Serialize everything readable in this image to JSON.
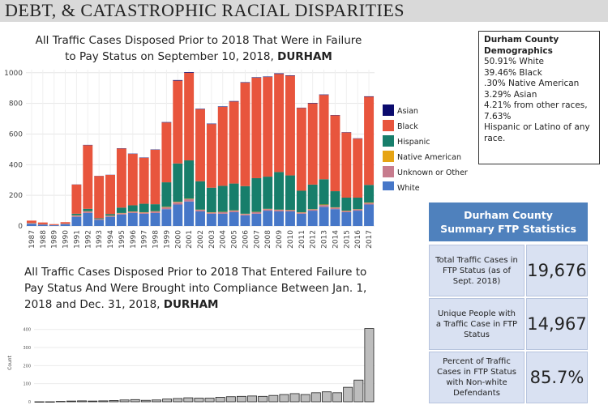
{
  "header": {
    "text": "DEBT, & CATASTROPHIC RACIAL DISPARITIES"
  },
  "chart1": {
    "title_line1": "All Traffic Cases Disposed Prior to 2018 That Were in Failure",
    "title_line2": "to Pay Status on September 10, 2018,",
    "title_bold": "DURHAM"
  },
  "chart2": {
    "title_line1": "All Traffic Cases Disposed Prior to 2018 That Entered Failure to",
    "title_line2": "Pay Status And Were Brought into Compliance Between Jan. 1,",
    "title_line3": "2018 and Dec. 31, 2018,",
    "title_bold": "DURHAM"
  },
  "demographics": {
    "title_line1": "Durham County",
    "title_line2": "Demographics",
    "lines": [
      "50.91% White",
      "39.46% Black",
      ".30% Native American",
      "3.29% Asian",
      "4.21% from other races,",
      "7.63%",
      "Hispanic or Latino of any",
      "race."
    ]
  },
  "summary": {
    "title_line1": "Durham County",
    "title_line2": "Summary FTP Statistics",
    "rows": [
      {
        "label": "Total Traffic Cases in FTP Status (as of Sept. 2018)",
        "value": "19,676"
      },
      {
        "label": "Unique People with a Traffic Case in FTP Status",
        "value": "14,967"
      },
      {
        "label": "Percent of Traffic Cases in FTP Status with Non-white Defendants",
        "value": "85.7%"
      }
    ]
  },
  "colors": {
    "Asian": "#0b0b6e",
    "Black": "#e8553d",
    "Hispanic": "#177e6b",
    "Native American": "#e6a414",
    "Unknown or Other": "#c77c8e",
    "White": "#4677c8"
  },
  "chart_data": [
    {
      "type": "bar",
      "stacked": true,
      "categories": [
        "1987",
        "1988",
        "1989",
        "1990",
        "1991",
        "1992",
        "1993",
        "1994",
        "1995",
        "1996",
        "1997",
        "1998",
        "1999",
        "2000",
        "2001",
        "2002",
        "2003",
        "2004",
        "2005",
        "2006",
        "2007",
        "2008",
        "2009",
        "2010",
        "2011",
        "2012",
        "2013",
        "2014",
        "2015",
        "2016",
        "2017"
      ],
      "ylim": [
        0,
        1020
      ],
      "yticks": [
        0,
        200,
        400,
        600,
        800,
        1000
      ],
      "legend_position": "right",
      "series": [
        {
          "name": "White",
          "values": [
            15,
            8,
            5,
            12,
            60,
            85,
            40,
            60,
            75,
            85,
            80,
            85,
            110,
            140,
            160,
            95,
            80,
            80,
            90,
            70,
            80,
            100,
            95,
            95,
            80,
            100,
            125,
            110,
            90,
            100,
            140
          ]
        },
        {
          "name": "Unknown or Other",
          "values": [
            3,
            2,
            1,
            2,
            8,
            10,
            5,
            6,
            8,
            8,
            8,
            10,
            12,
            15,
            15,
            10,
            8,
            10,
            10,
            8,
            10,
            10,
            10,
            8,
            8,
            8,
            12,
            10,
            8,
            8,
            10
          ]
        },
        {
          "name": "Native American",
          "values": [
            1,
            0,
            0,
            0,
            2,
            2,
            1,
            2,
            2,
            2,
            2,
            2,
            3,
            3,
            3,
            2,
            2,
            2,
            2,
            2,
            2,
            2,
            2,
            2,
            2,
            2,
            3,
            2,
            2,
            2,
            3
          ]
        },
        {
          "name": "Hispanic",
          "values": [
            1,
            1,
            0,
            1,
            10,
            15,
            5,
            10,
            35,
            40,
            55,
            45,
            160,
            250,
            250,
            185,
            160,
            170,
            175,
            180,
            220,
            210,
            245,
            225,
            140,
            160,
            165,
            105,
            85,
            75,
            115
          ]
        },
        {
          "name": "Black",
          "values": [
            15,
            12,
            6,
            10,
            190,
            415,
            275,
            255,
            385,
            335,
            300,
            355,
            390,
            540,
            572,
            470,
            415,
            515,
            535,
            675,
            655,
            650,
            640,
            650,
            540,
            530,
            550,
            495,
            425,
            385,
            575
          ]
        },
        {
          "name": "Asian",
          "values": [
            0,
            0,
            0,
            0,
            1,
            2,
            1,
            1,
            2,
            2,
            2,
            2,
            3,
            4,
            4,
            3,
            3,
            3,
            3,
            3,
            3,
            3,
            4,
            3,
            2,
            3,
            3,
            2,
            2,
            2,
            3
          ]
        }
      ]
    },
    {
      "type": "bar",
      "ylabel": "Count",
      "ylim": [
        0,
        430
      ],
      "yticks": [
        0,
        100,
        200,
        300,
        400
      ],
      "values": [
        0,
        0,
        2,
        4,
        5,
        4,
        5,
        7,
        10,
        12,
        8,
        10,
        15,
        18,
        22,
        20,
        20,
        25,
        28,
        30,
        32,
        30,
        35,
        40,
        45,
        40,
        50,
        55,
        50,
        80,
        120,
        405
      ]
    }
  ]
}
